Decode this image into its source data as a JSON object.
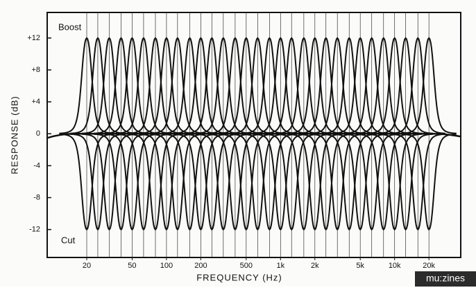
{
  "chart_data": {
    "type": "eq_response",
    "x_label": "FREQUENCY (Hz)",
    "y_label": "RESPONSE (dB)",
    "x": [
      20,
      25,
      31.5,
      40,
      50,
      63,
      80,
      100,
      125,
      160,
      200,
      250,
      315,
      400,
      500,
      630,
      800,
      1000,
      1250,
      1600,
      2000,
      2500,
      3150,
      4000,
      5000,
      6300,
      8000,
      10000,
      12500,
      16000,
      20000
    ],
    "series": [
      {
        "name": "Boost",
        "color": "#111111",
        "values": [
          12,
          12,
          12,
          12,
          12,
          12,
          12,
          12,
          12,
          12,
          12,
          12,
          12,
          12,
          12,
          12,
          12,
          12,
          12,
          12,
          12,
          12,
          12,
          12,
          12,
          12,
          12,
          12,
          12,
          12,
          12
        ]
      },
      {
        "name": "Cut",
        "color": "#111111",
        "values": [
          -12,
          -12,
          -12,
          -12,
          -12,
          -12,
          -12,
          -12,
          -12,
          -12,
          -12,
          -12,
          -12,
          -12,
          -12,
          -12,
          -12,
          -12,
          -12,
          -12,
          -12,
          -12,
          -12,
          -12,
          -12,
          -12,
          -12,
          -12,
          -12,
          -12,
          -12
        ]
      }
    ],
    "xlog": true,
    "xlim": [
      9,
      38000
    ],
    "xticks": [
      20,
      50,
      100,
      200,
      500,
      {
        "value": 1000,
        "label": "1k"
      },
      {
        "value": 2000,
        "label": "2k"
      },
      {
        "value": 5000,
        "label": "5k"
      },
      {
        "value": 10000,
        "label": "10k"
      },
      {
        "value": 20000,
        "label": "20k"
      }
    ],
    "ylim": [
      -15.5,
      15.2
    ],
    "yticks": [
      {
        "value": 12,
        "label": "+12"
      },
      {
        "value": 8,
        "label": "+8"
      },
      {
        "value": 4,
        "label": "+4"
      },
      0,
      -4,
      -8,
      -12
    ],
    "watermark": "mu:zines"
  }
}
